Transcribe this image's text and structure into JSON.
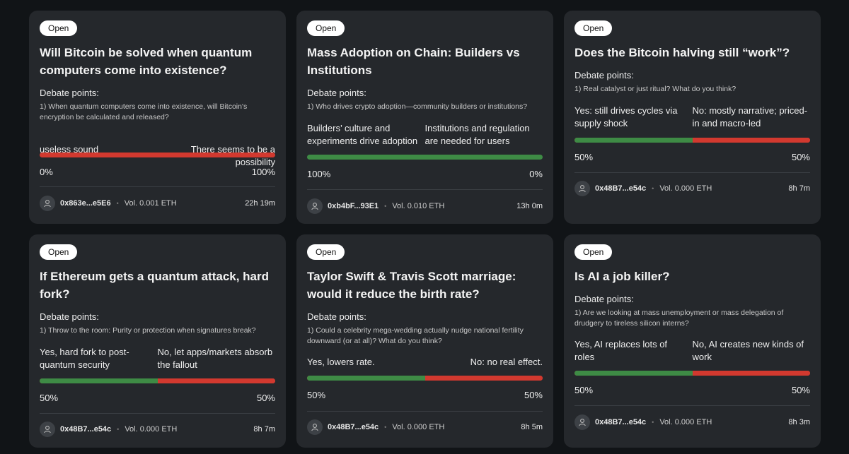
{
  "cards": [
    {
      "status": "Open",
      "title": "Will Bitcoin be solved when quantum computers come into existence?",
      "debate_label": "Debate points:",
      "debate_text": "1) When quantum computers come into existence, will Bitcoin's encryption be calculated and released?",
      "option_yes": "useless sound",
      "option_no": "There seems to be a possibility",
      "yes_pct_label": "0%",
      "no_pct_label": "100%",
      "yes_fraction": 0.0,
      "author": "0x863e...e5E6",
      "volume": "Vol. 0.001 ETH",
      "time_left": "22h 19m"
    },
    {
      "status": "Open",
      "title": "Mass Adoption on Chain: Builders vs Institutions",
      "debate_label": "Debate points:",
      "debate_text": "1) Who drives crypto adoption—community builders or institutions?",
      "option_yes": "Builders’ culture and experiments drive adoption",
      "option_no": "Institutions and regulation are needed for users",
      "yes_pct_label": "100%",
      "no_pct_label": "0%",
      "yes_fraction": 1.0,
      "author": "0xb4bF...93E1",
      "volume": "Vol. 0.010 ETH",
      "time_left": "13h 0m"
    },
    {
      "status": "Open",
      "title": "Does the Bitcoin halving still “work”?",
      "debate_label": "Debate points:",
      "debate_text": "1) Real catalyst or just ritual? What do you think?",
      "option_yes": "Yes: still drives cycles via supply shock",
      "option_no": "No: mostly narrative; priced-in and macro-led",
      "yes_pct_label": "50%",
      "no_pct_label": "50%",
      "yes_fraction": 0.5,
      "author": "0x48B7...e54c",
      "volume": "Vol. 0.000 ETH",
      "time_left": "8h 7m"
    },
    {
      "status": "Open",
      "title": "If Ethereum gets a quantum attack, hard fork?",
      "debate_label": "Debate points:",
      "debate_text": "1) Throw to the room: Purity or protection when signatures break?",
      "option_yes": "Yes, hard fork to post-quantum security",
      "option_no": "No, let apps/markets absorb the fallout",
      "yes_pct_label": "50%",
      "no_pct_label": "50%",
      "yes_fraction": 0.5,
      "author": "0x48B7...e54c",
      "volume": "Vol. 0.000 ETH",
      "time_left": "8h 7m"
    },
    {
      "status": "Open",
      "title": "Taylor Swift & Travis Scott marriage: would it reduce the birth rate?",
      "debate_label": "Debate points:",
      "debate_text": "1) Could a celebrity mega-wedding actually nudge national fertility downward (or at all)? What do you think?",
      "option_yes": "Yes, lowers rate.",
      "option_no": "No: no real effect.",
      "yes_pct_label": "50%",
      "no_pct_label": "50%",
      "yes_fraction": 0.5,
      "author": "0x48B7...e54c",
      "volume": "Vol. 0.000 ETH",
      "time_left": "8h 5m"
    },
    {
      "status": "Open",
      "title": "Is AI a job killer?",
      "debate_label": "Debate points:",
      "debate_text": "1) Are we looking at mass unemployment or mass delegation of drudgery to tireless silicon interns?",
      "option_yes": "Yes, AI replaces lots of roles",
      "option_no": "No, AI creates new kinds of work",
      "yes_pct_label": "50%",
      "no_pct_label": "50%",
      "yes_fraction": 0.5,
      "author": "0x48B7...e54c",
      "volume": "Vol. 0.000 ETH",
      "time_left": "8h 3m"
    }
  ],
  "colors": {
    "yes": "#3e8b45",
    "no": "#d2392f",
    "card": "#25282c",
    "background": "#111417"
  },
  "icons": {
    "avatar": "user-icon"
  }
}
